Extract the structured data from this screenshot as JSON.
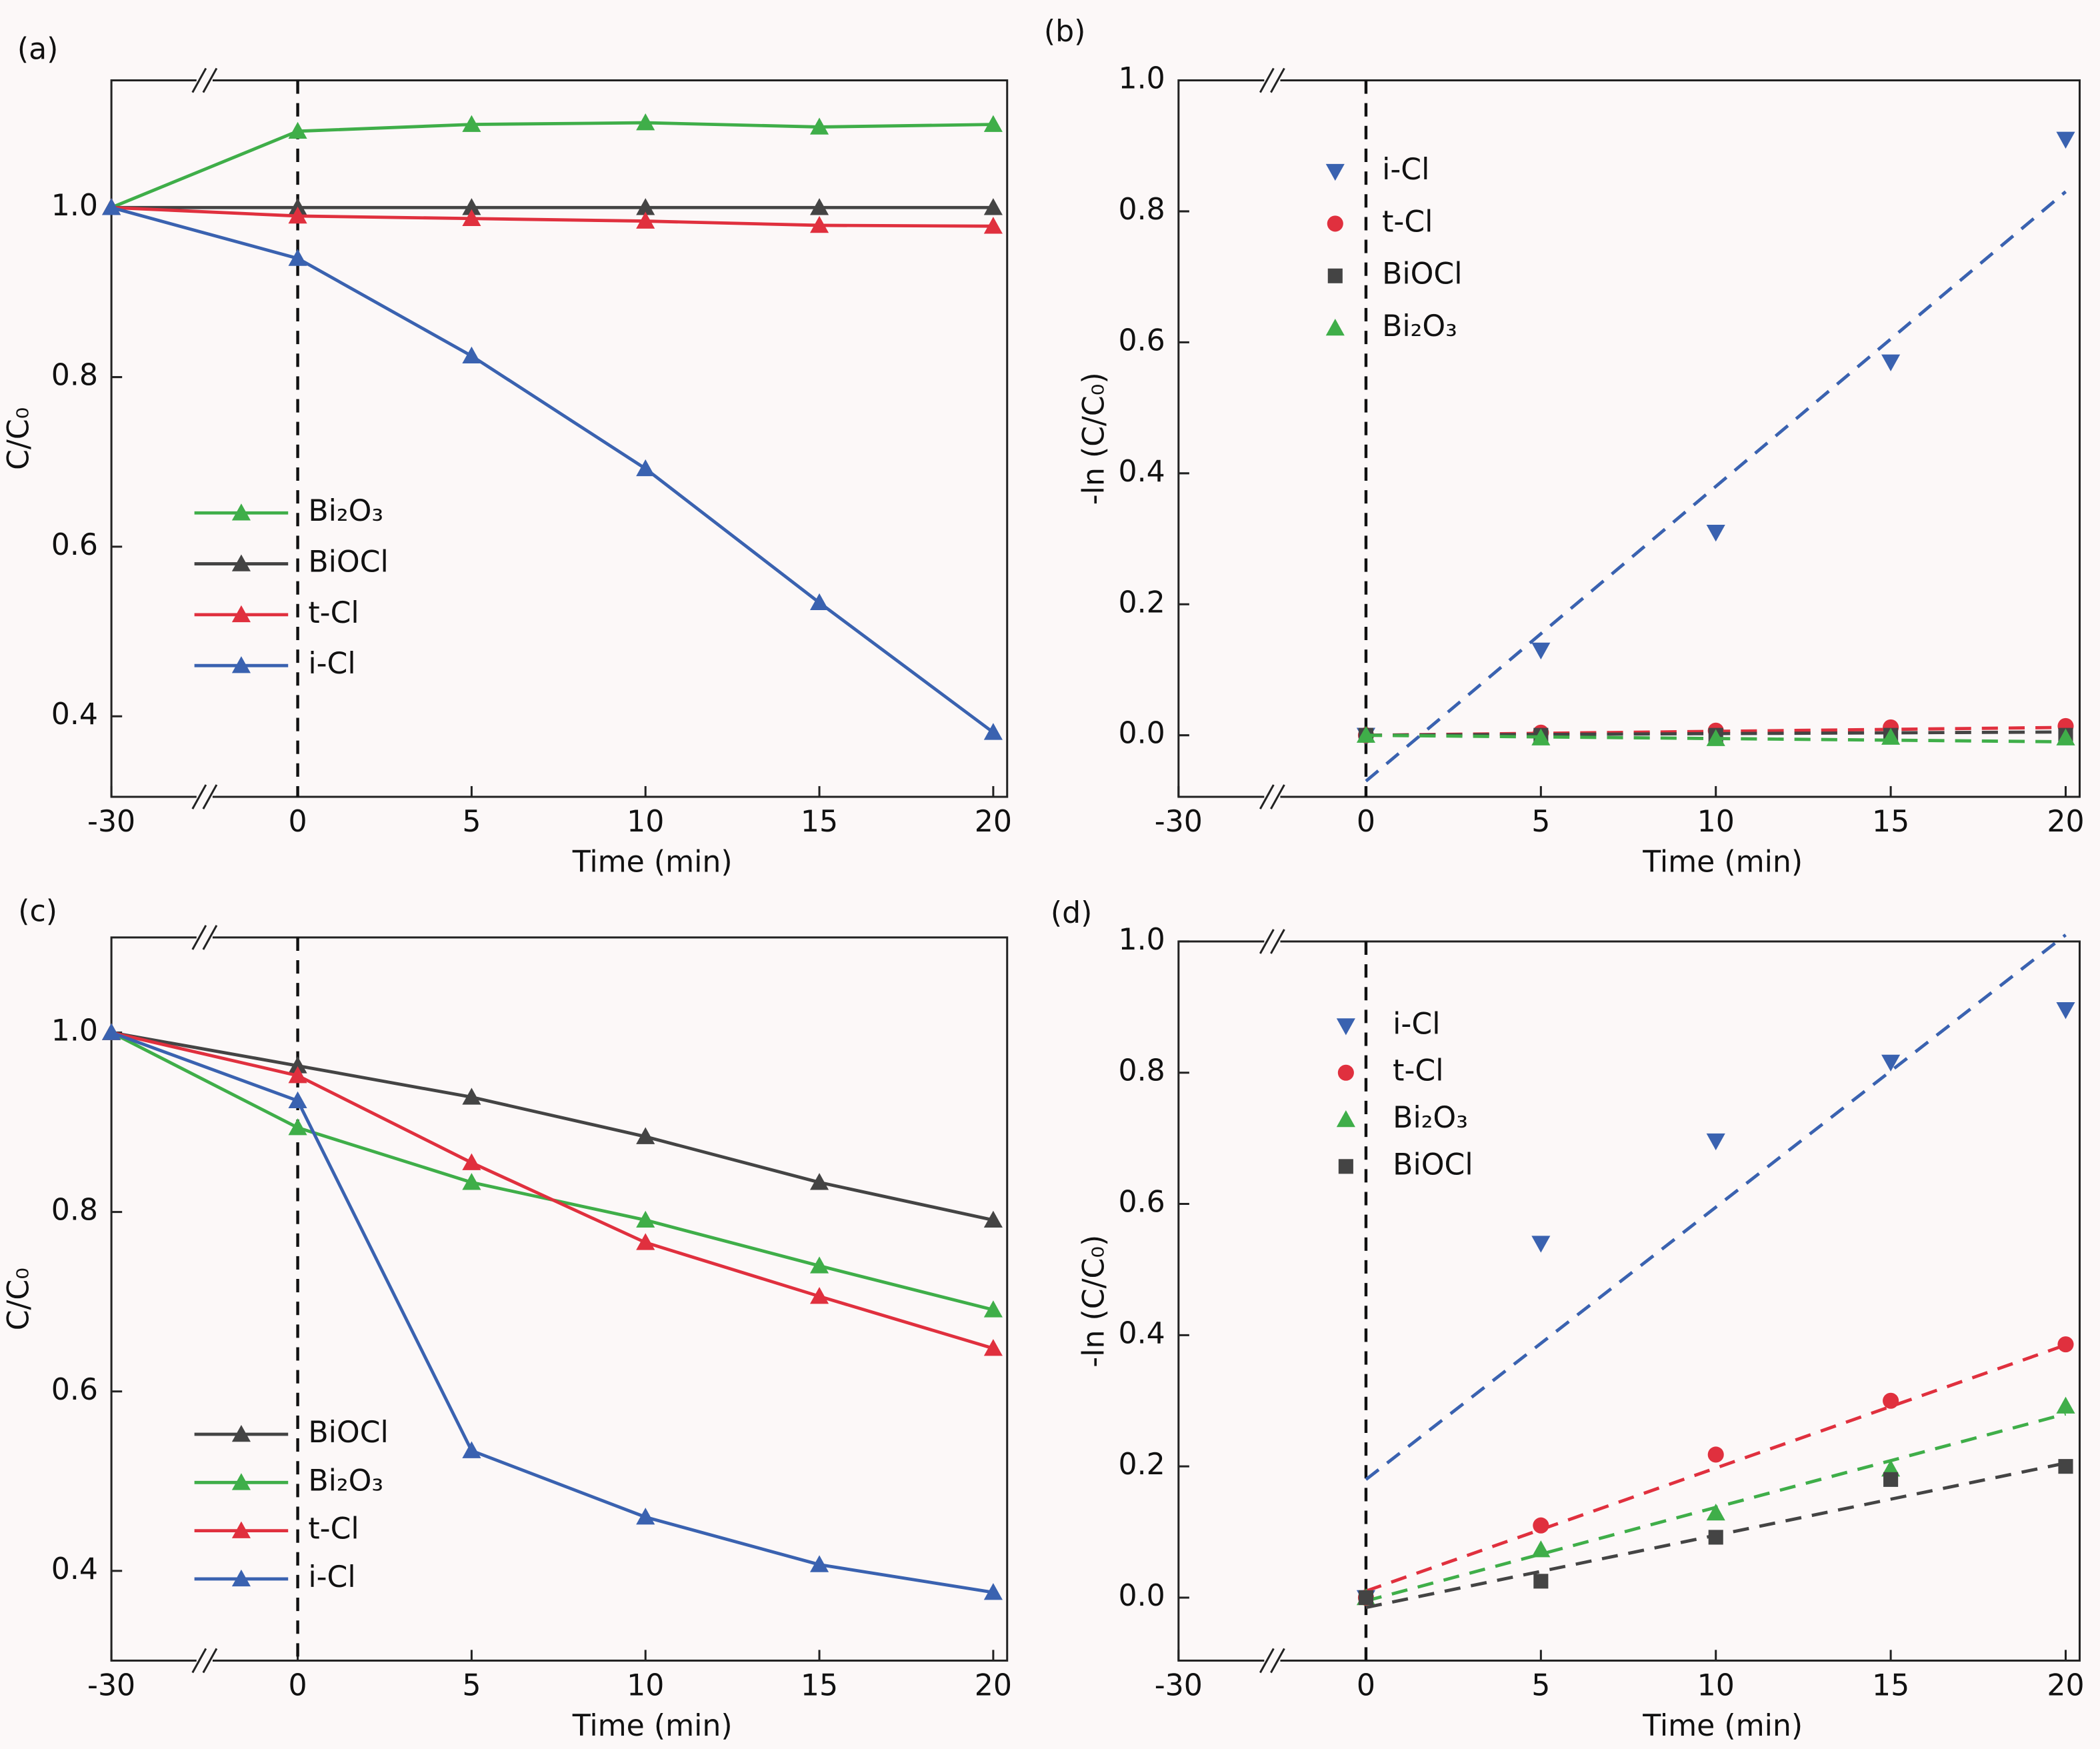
{
  "chart_data": [
    {
      "type": "line",
      "label": "(a)",
      "xlabel": "Time (min)",
      "ylabel": "C/C₀",
      "axis_break": true,
      "vline": 0,
      "x": [
        -30,
        0,
        5,
        10,
        15,
        20
      ],
      "xlim": [
        -30,
        20.4
      ],
      "xticks": [
        -30,
        0,
        5,
        10,
        15,
        20
      ],
      "ylim": [
        0.305,
        1.15
      ],
      "yticks": [
        0.4,
        0.6,
        0.8,
        {
          "value": 1,
          "label": "1.0"
        }
      ],
      "series": [
        {
          "name": "Bi₂O₃",
          "color": "#3fae49",
          "marker": "triangle",
          "values": [
            1.0,
            1.09,
            1.098,
            1.1,
            1.095,
            1.098
          ]
        },
        {
          "name": "BiOCl",
          "color": "#444444",
          "marker": "triangle",
          "values": [
            1.0,
            1.0,
            1.0,
            1.0,
            1.0,
            1.0
          ]
        },
        {
          "name": "t-Cl",
          "color": "#e0303e",
          "marker": "triangle",
          "values": [
            1.0,
            0.99,
            0.987,
            0.984,
            0.979,
            0.978
          ]
        },
        {
          "name": "i-Cl",
          "color": "#3a62b0",
          "marker": "triangle",
          "values": [
            1.0,
            0.94,
            0.825,
            0.692,
            0.534,
            0.381
          ]
        }
      ]
    },
    {
      "type": "scatter",
      "label": "(b)",
      "xlabel": "Time (min)",
      "ylabel": "-ln (C/C₀)",
      "axis_break": true,
      "vline": 0,
      "x": [
        0,
        5,
        10,
        15,
        20
      ],
      "xlim": [
        -30,
        20.4
      ],
      "xticks": [
        -30,
        0,
        5,
        10,
        15,
        20
      ],
      "ylim": [
        -0.094,
        1.0
      ],
      "yticks": [
        {
          "value": 0,
          "label": "0.0"
        },
        0.2,
        0.4,
        0.6,
        0.8,
        {
          "value": 1,
          "label": "1.0"
        }
      ],
      "series": [
        {
          "name": "i-Cl",
          "color": "#3a62b0",
          "marker": "triangle-down",
          "values": [
            0.0,
            0.13,
            0.31,
            0.57,
            0.91
          ],
          "fit": {
            "x": [
              0,
              20
            ],
            "values": [
              -0.07,
              0.83
            ]
          }
        },
        {
          "name": "t-Cl",
          "color": "#e0303e",
          "marker": "circle",
          "values": [
            0.0,
            0.004,
            0.007,
            0.012,
            0.014
          ],
          "fit": {
            "x": [
              0,
              20
            ],
            "values": [
              0.0,
              0.012
            ]
          }
        },
        {
          "name": "BiOCl",
          "color": "#444444",
          "marker": "square",
          "values": [
            0.0,
            0.0,
            0.0,
            0.0,
            0.0
          ],
          "fit": {
            "x": [
              0,
              20
            ],
            "values": [
              0.0,
              0.005
            ]
          }
        },
        {
          "name": "Bi₂O₃",
          "color": "#3fae49",
          "marker": "triangle",
          "values": [
            0.0,
            -0.004,
            -0.005,
            -0.003,
            -0.004
          ],
          "fit": {
            "x": [
              0,
              20
            ],
            "values": [
              0.0,
              -0.01
            ]
          }
        }
      ]
    },
    {
      "type": "line",
      "label": "(c)",
      "xlabel": "Time (min)",
      "ylabel": "C/C₀",
      "axis_break": true,
      "vline": 0,
      "x": [
        -30,
        0,
        5,
        10,
        15,
        20
      ],
      "xlim": [
        -30,
        20.4
      ],
      "xticks": [
        -30,
        0,
        5,
        10,
        15,
        20
      ],
      "ylim": [
        0.3,
        1.106
      ],
      "yticks": [
        0.4,
        0.6,
        0.8,
        {
          "value": 1,
          "label": "1.0"
        }
      ],
      "series": [
        {
          "name": "BiOCl",
          "color": "#444444",
          "marker": "triangle",
          "values": [
            1.0,
            0.963,
            0.928,
            0.884,
            0.833,
            0.791
          ]
        },
        {
          "name": "Bi₂O₃",
          "color": "#3fae49",
          "marker": "triangle",
          "values": [
            1.0,
            0.894,
            0.833,
            0.791,
            0.74,
            0.691
          ]
        },
        {
          "name": "t-Cl",
          "color": "#e0303e",
          "marker": "triangle",
          "values": [
            1.0,
            0.952,
            0.855,
            0.766,
            0.706,
            0.648
          ]
        },
        {
          "name": "i-Cl",
          "color": "#3a62b0",
          "marker": "triangle",
          "values": [
            1.0,
            0.924,
            0.534,
            0.46,
            0.407,
            0.376
          ]
        }
      ]
    },
    {
      "type": "scatter",
      "label": "(d)",
      "xlabel": "Time (min)",
      "ylabel": "-ln (C/C₀)",
      "axis_break": true,
      "vline": 0,
      "x": [
        0,
        5,
        10,
        15,
        20
      ],
      "xlim": [
        -30,
        20.4
      ],
      "xticks": [
        -30,
        0,
        5,
        10,
        15,
        20
      ],
      "ylim": [
        -0.096,
        1.0
      ],
      "yticks": [
        {
          "value": 0,
          "label": "0.0"
        },
        0.2,
        0.4,
        0.6,
        0.8,
        {
          "value": 1,
          "label": "1.0"
        }
      ],
      "series": [
        {
          "name": "i-Cl",
          "color": "#3a62b0",
          "marker": "triangle-down",
          "values": [
            0.0,
            0.54,
            0.696,
            0.816,
            0.896
          ],
          "fit": {
            "x": [
              0,
              20
            ],
            "values": [
              0.18,
              1.01
            ]
          }
        },
        {
          "name": "t-Cl",
          "color": "#e0303e",
          "marker": "circle",
          "values": [
            0.0,
            0.11,
            0.218,
            0.3,
            0.386
          ],
          "fit": {
            "x": [
              0,
              20
            ],
            "values": [
              0.01,
              0.385
            ]
          }
        },
        {
          "name": "Bi₂O₃",
          "color": "#3fae49",
          "marker": "triangle",
          "values": [
            0.0,
            0.073,
            0.129,
            0.196,
            0.292
          ],
          "fit": {
            "x": [
              0,
              20
            ],
            "values": [
              -0.005,
              0.28
            ]
          }
        },
        {
          "name": "BiOCl",
          "color": "#444444",
          "marker": "square",
          "values": [
            0.0,
            0.025,
            0.092,
            0.18,
            0.2
          ],
          "fit": {
            "x": [
              0,
              20
            ],
            "values": [
              -0.015,
              0.205
            ]
          }
        }
      ]
    }
  ]
}
